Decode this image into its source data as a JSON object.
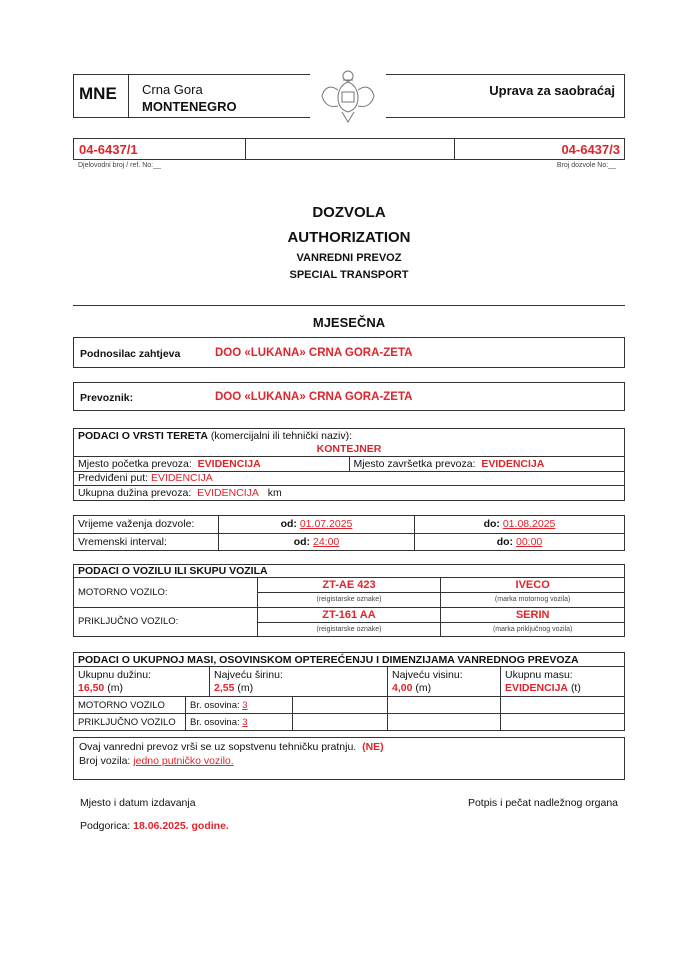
{
  "header": {
    "country_code": "MNE",
    "country_local": "Crna Gora",
    "country_en": "MONTENEGRO",
    "authority": "Uprava za saobraćaj",
    "emblem": "montenegro-coat-of-arms"
  },
  "refs": {
    "ref_no": "04-6437/1",
    "ref_label": "Djelovodni broj / ref. No:__",
    "permit_no": "04-6437/3",
    "permit_label": "Broj dozvole No:__"
  },
  "title": {
    "line1": "DOZVOLA",
    "line2": "AUTHORIZATION",
    "line3": "VANREDNI PREVOZ",
    "line4": "SPECIAL TRANSPORT",
    "period": "MJESEČNA"
  },
  "applicant": {
    "label": "Podnosilac zahtjeva",
    "value": "DOO «LUKANA» CRNA GORA-ZETA"
  },
  "carrier": {
    "label": "Prevoznik:",
    "value": "DOO «LUKANA» CRNA GORA-ZETA"
  },
  "cargo": {
    "heading": "PODACI O VRSTI TERETA",
    "heading_note": "(komercijalni ili tehnički naziv):",
    "name": "KONTEJNER",
    "start_label": "Mjesto početka prevoza:",
    "start": "EVIDENCIJA",
    "end_label": "Mjesto završetka prevoza:",
    "end": "EVIDENCIJA",
    "route_label": "Predviđeni put:",
    "route": "EVIDENCIJA",
    "length_label": "Ukupna dužina prevoza:",
    "length": "EVIDENCIJA",
    "length_unit": "km"
  },
  "validity": {
    "valid_label": "Vrijeme važenja dozvole:",
    "interval_label": "Vremenski interval:",
    "from_label": "od:",
    "to_label": "do:",
    "valid_from": "01.07.2025",
    "valid_to": "01.08.2025",
    "interval_from": "24:00",
    "interval_to": "00:00"
  },
  "vehicle": {
    "heading": "PODACI O VOZILU ILI SKUPU  VOZILA",
    "motor_label": "MOTORNO VOZILO:",
    "motor_plate": "ZT-AE 423",
    "motor_make": "IVECO",
    "motor_plate_note": "(reigistarske oznake)",
    "motor_make_note": "(marka motornog vozila)",
    "trailer_label": "PRIKLJUČNO VOZILO:",
    "trailer_plate": "ZT-161 AA",
    "trailer_make": "SERIN",
    "trailer_plate_note": "(reigistarske oznake)",
    "trailer_make_note": "(marka priključnog vozila)"
  },
  "mass": {
    "heading": "PODACI O UKUPNOJ MASI, OSOVINSKOM  OPTEREĆENJU I  DIMENZIJAMA VANREDNOG PREVOZA",
    "length_label": "Ukupnu dužinu:",
    "length": "16,50",
    "length_unit": "(m)",
    "width_label": "Najveću širinu:",
    "width": "2,55",
    "width_unit": "(m)",
    "height_label": "Najveću visinu:",
    "height": "4,00",
    "height_unit": "(m)",
    "mass_label": "Ukupnu masu:",
    "mass": "EVIDENCIJA",
    "mass_unit": "(t)",
    "motor_label": "MOTORNO VOZILO",
    "trailer_label": "PRIKLJUČNO VOZILO",
    "axles_label": "Br. osovina:",
    "motor_axles": "3",
    "trailer_axles": "3"
  },
  "escort": {
    "text": "Ovaj vanredni prevoz vrši se uz sopstvenu tehničku pratnju.",
    "answer": "(NE)",
    "count_label": "Broj vozila:",
    "count": "jedno putničko vozilo."
  },
  "footer": {
    "place_date_label": "Mjesto i datum izdavanja",
    "signature_label": "Potpis i pečat nadležnog organa",
    "place": "Podgorica:",
    "date": "18.06.2025. godine."
  }
}
